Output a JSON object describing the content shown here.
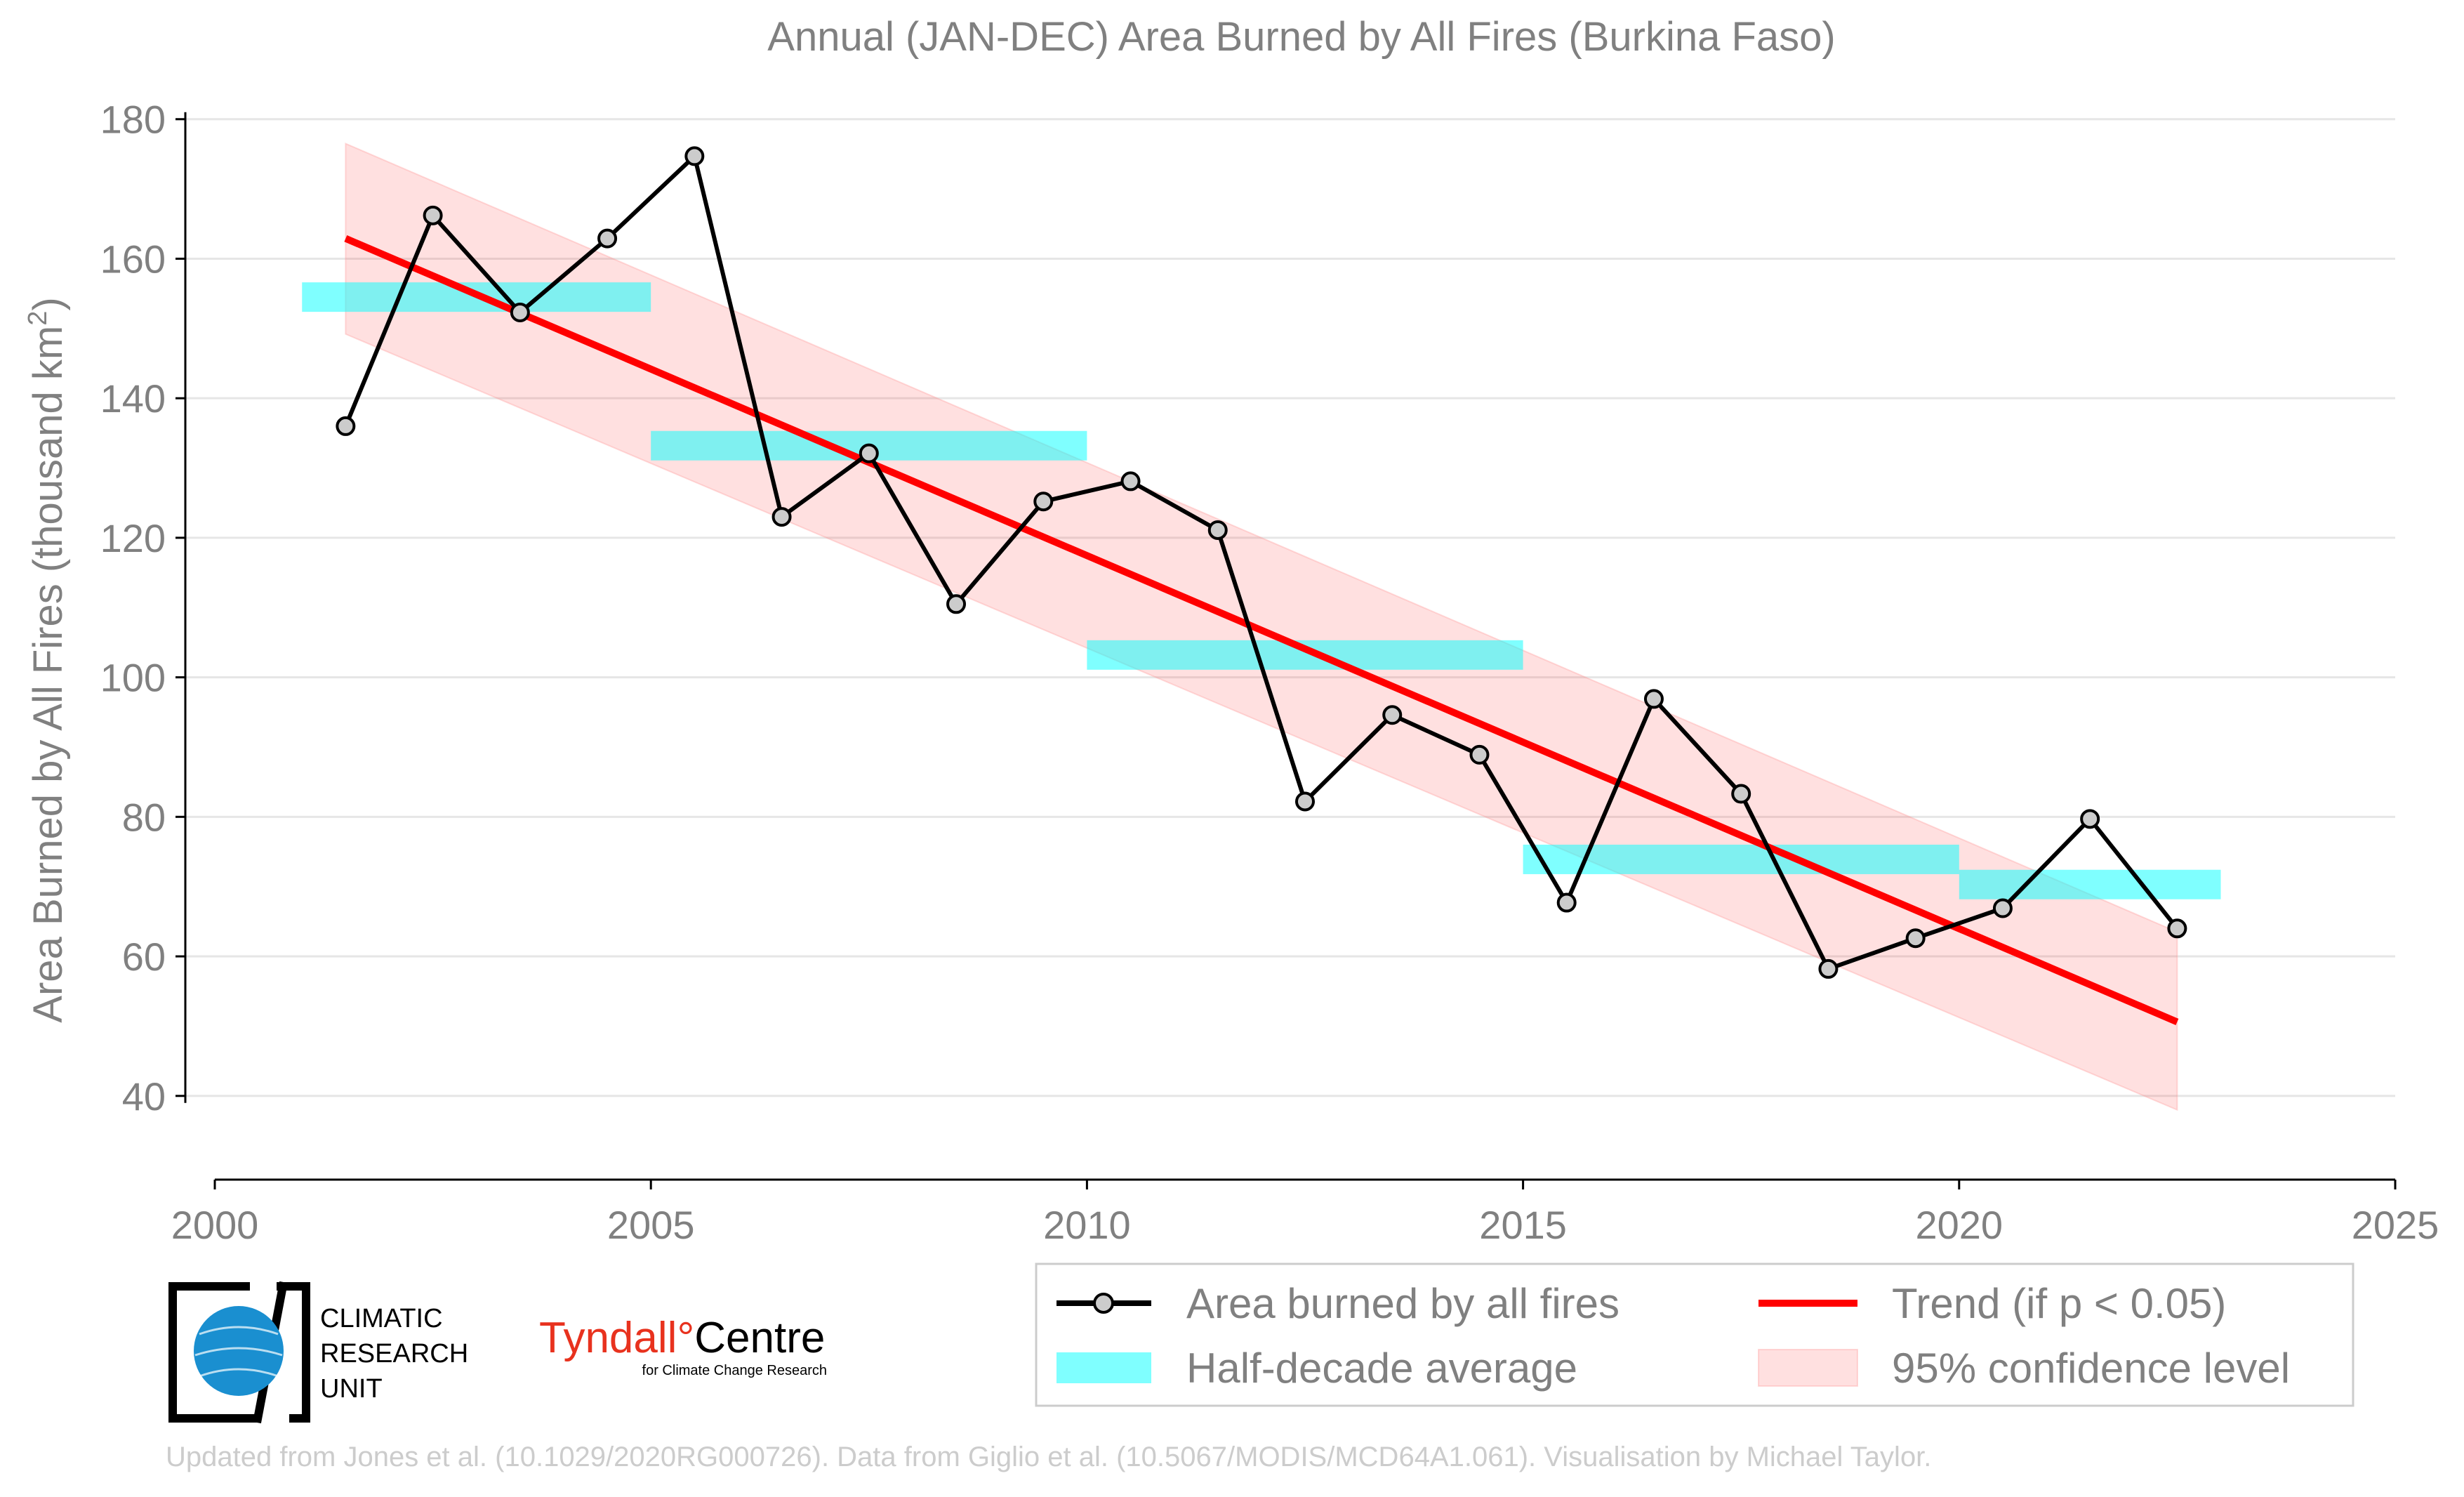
{
  "chart_data": {
    "type": "line",
    "title": "Annual (JAN-DEC) Area Burned by All Fires (Burkina Faso)",
    "ylabel_main": "Area Burned by All Fires (thousand km",
    "ylabel_sup": "2",
    "ylabel_close": ")",
    "xlim": [
      2000,
      2025
    ],
    "ylim": [
      28,
      184
    ],
    "xticks": [
      2000,
      2005,
      2010,
      2015,
      2020,
      2025
    ],
    "yticks": [
      40,
      60,
      80,
      100,
      120,
      140,
      160,
      180
    ],
    "grid": "horizontal",
    "legend_position": "bottom-right",
    "series": [
      {
        "name": "Area burned by all fires",
        "color": "#000000",
        "marker_fill": "#cccccc",
        "x": [
          2001.5,
          2002.5,
          2003.5,
          2004.5,
          2005.5,
          2006.5,
          2007.5,
          2008.5,
          2009.5,
          2010.5,
          2011.5,
          2012.5,
          2013.5,
          2014.5,
          2015.5,
          2016.5,
          2017.5,
          2018.5,
          2019.5,
          2020.5,
          2021.5,
          2022.5
        ],
        "y": [
          136.0,
          166.2,
          152.3,
          162.9,
          174.7,
          123.0,
          132.1,
          110.5,
          125.2,
          128.1,
          121.1,
          82.2,
          94.6,
          88.9,
          67.7,
          96.9,
          83.3,
          58.2,
          62.6,
          66.9,
          79.7,
          64.0
        ]
      }
    ],
    "half_decade_average": {
      "name": "Half-decade average",
      "color": "#00ffff",
      "segments": [
        {
          "x0": 2001,
          "x1": 2005,
          "y": 154.5
        },
        {
          "x0": 2005,
          "x1": 2010,
          "y": 133.2
        },
        {
          "x0": 2010,
          "x1": 2015,
          "y": 103.2
        },
        {
          "x0": 2015,
          "x1": 2020,
          "y": 73.9
        },
        {
          "x0": 2020,
          "x1": 2023,
          "y": 70.3
        }
      ]
    },
    "trend": {
      "name": "Trend (if p < 0.05)",
      "color": "#ff0000",
      "x": [
        2001.5,
        2022.5
      ],
      "y": [
        162.9,
        50.6
      ]
    },
    "confidence": {
      "name": "95% confidence level",
      "color": "#ffcccc",
      "x": [
        2001.5,
        2022.5
      ],
      "upper": [
        176.5,
        63.5
      ],
      "lower": [
        149.2,
        38.0
      ]
    }
  },
  "legend": {
    "items": [
      {
        "label": "Area burned by all fires"
      },
      {
        "label": "Trend (if p < 0.05)"
      },
      {
        "label": "Half-decade average"
      },
      {
        "label": "95% confidence level"
      }
    ]
  },
  "logos": {
    "cru_line1": "CLIMATIC",
    "cru_line2": "RESEARCH",
    "cru_line3": "UNIT",
    "tyndall_name": "Tyndall",
    "tyndall_degree": "°",
    "tyndall_centre": "Centre",
    "tyndall_sub": "for Climate Change Research"
  },
  "footer": {
    "credit": "Updated from Jones et al. (10.1029/2020RG000726). Data from Giglio et al. (10.5067/MODIS/MCD64A1.061). Visualisation by Michael Taylor."
  },
  "colors": {
    "axis_text": "#808080",
    "gridline": "#e6e6e6",
    "footer_text": "#cccccc",
    "tyndall_red": "#e8321e",
    "cru_blue": "#1a8fd0"
  }
}
